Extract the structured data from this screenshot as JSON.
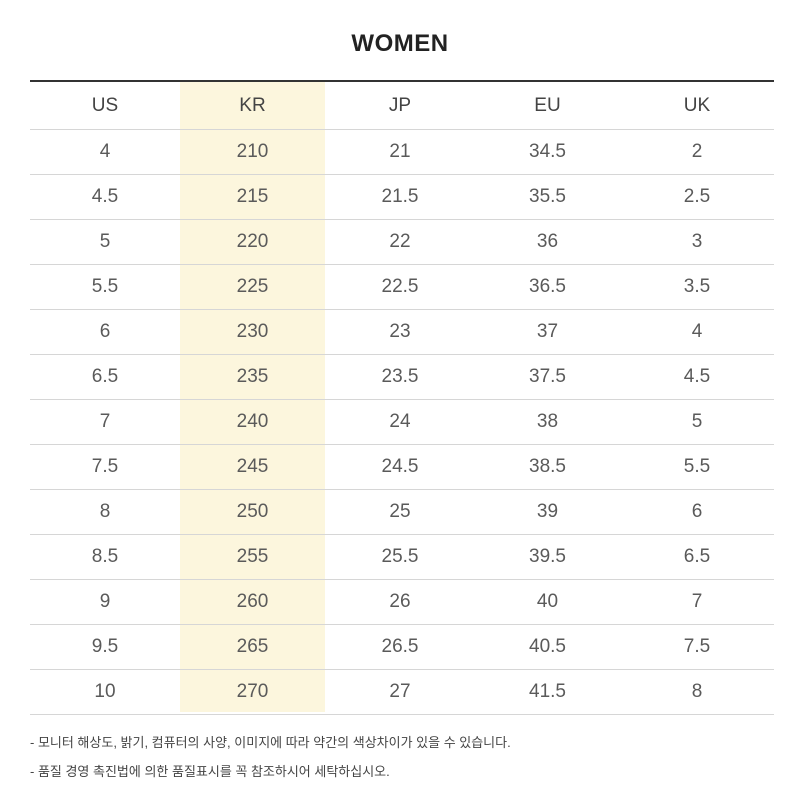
{
  "title": "WOMEN",
  "table": {
    "headers": [
      "US",
      "KR",
      "JP",
      "EU",
      "UK"
    ],
    "rows": [
      [
        "4",
        "210",
        "21",
        "34.5",
        "2"
      ],
      [
        "4.5",
        "215",
        "21.5",
        "35.5",
        "2.5"
      ],
      [
        "5",
        "220",
        "22",
        "36",
        "3"
      ],
      [
        "5.5",
        "225",
        "22.5",
        "36.5",
        "3.5"
      ],
      [
        "6",
        "230",
        "23",
        "37",
        "4"
      ],
      [
        "6.5",
        "235",
        "23.5",
        "37.5",
        "4.5"
      ],
      [
        "7",
        "240",
        "24",
        "38",
        "5"
      ],
      [
        "7.5",
        "245",
        "24.5",
        "38.5",
        "5.5"
      ],
      [
        "8",
        "250",
        "25",
        "39",
        "6"
      ],
      [
        "8.5",
        "255",
        "25.5",
        "39.5",
        "6.5"
      ],
      [
        "9",
        "260",
        "26",
        "40",
        "7"
      ],
      [
        "9.5",
        "265",
        "26.5",
        "40.5",
        "7.5"
      ],
      [
        "10",
        "270",
        "27",
        "41.5",
        "8"
      ]
    ],
    "highlight_color": "#fcf6dd"
  },
  "notes": [
    "- 모니터 해상도, 밝기, 컴퓨터의 사양, 이미지에 따라 약간의 색상차이가 있을 수 있습니다.",
    "- 품질 경영 촉진법에 의한 품질표시를 꼭 참조하시어 세탁하십시오."
  ]
}
